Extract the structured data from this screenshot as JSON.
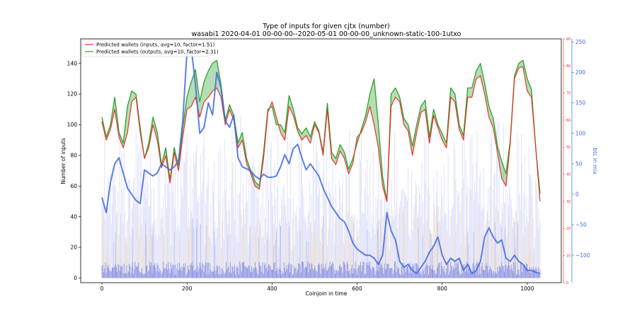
{
  "chart_data": {
    "type": "line",
    "title": "Type of inputs for given cjtx (number)",
    "subtitle": "wasabi1 2020-04-01 00-00-00--2020-05-01 00-00-00_unknown-static-100-1utxo",
    "xlabel": "Coinjoin in time",
    "ylabel": "Number of inputs",
    "y2label": "btc in mix",
    "xlim": [
      -50,
      1080
    ],
    "ylim": [
      -3,
      156
    ],
    "y2lim": [
      -145,
      255
    ],
    "y3lim": [
      0,
      90
    ],
    "xticks": [
      "0",
      "200",
      "400",
      "600",
      "800",
      "1000"
    ],
    "yticks": [
      "0",
      "20",
      "40",
      "60",
      "80",
      "100",
      "120",
      "140"
    ],
    "y2ticks": [
      "250",
      "200",
      "150",
      "100",
      "50",
      "0",
      "−50",
      "−100"
    ],
    "y3ticks": [
      "90",
      "80",
      "70",
      "60",
      "50",
      "40",
      "30",
      "20",
      "10",
      "0"
    ],
    "legend_position": "upper left",
    "legend": [
      {
        "label": "Predicted wallets (inputs, avg=10, factor=1.51)",
        "color": "#e8312a"
      },
      {
        "label": "Predicted wallets (outputs, avg=10, factor=2.31)",
        "color": "#2ca02c"
      }
    ],
    "colors": {
      "inputs": "#e8312a",
      "outputs": "#2ca02c",
      "btc": "#4169e1",
      "bars": "#c8ccf7",
      "bars_dark": "#6f7be0",
      "bars_light": "#f5d9a8"
    },
    "series": [
      {
        "name": "Predicted wallets (inputs, avg=10, factor=1.51)",
        "x": [
          0,
          10,
          20,
          30,
          40,
          50,
          60,
          70,
          80,
          90,
          100,
          110,
          120,
          130,
          140,
          150,
          160,
          170,
          180,
          190,
          200,
          210,
          220,
          230,
          240,
          250,
          260,
          270,
          280,
          290,
          300,
          310,
          320,
          330,
          340,
          350,
          360,
          370,
          380,
          390,
          400,
          410,
          420,
          430,
          440,
          450,
          460,
          470,
          480,
          490,
          500,
          510,
          520,
          530,
          540,
          550,
          560,
          570,
          580,
          590,
          600,
          610,
          620,
          630,
          640,
          650,
          660,
          670,
          680,
          690,
          700,
          710,
          720,
          730,
          740,
          750,
          760,
          770,
          780,
          790,
          800,
          810,
          820,
          830,
          840,
          850,
          860,
          870,
          880,
          890,
          900,
          910,
          920,
          930,
          940,
          950,
          960,
          970,
          980,
          990,
          1000,
          1010,
          1020,
          1030
        ],
        "values": [
          102,
          90,
          97,
          110,
          92,
          85,
          95,
          115,
          118,
          95,
          78,
          85,
          100,
          90,
          72,
          80,
          62,
          82,
          70,
          92,
          110,
          112,
          118,
          105,
          115,
          118,
          122,
          124,
          118,
          100,
          110,
          103,
          85,
          90,
          75,
          68,
          60,
          58,
          78,
          108,
          115,
          105,
          95,
          90,
          112,
          106,
          96,
          90,
          93,
          88,
          100,
          95,
          80,
          110,
          78,
          74,
          83,
          78,
          68,
          75,
          92,
          95,
          102,
          112,
          100,
          85,
          60,
          50,
          112,
          118,
          115,
          100,
          96,
          80,
          95,
          108,
          110,
          88,
          106,
          98,
          90,
          85,
          118,
          115,
          97,
          90,
          118,
          118,
          130,
          132,
          120,
          105,
          98,
          82,
          65,
          60,
          88,
          130,
          137,
          138,
          122,
          118,
          85,
          50
        ],
        "fill_with": "Predicted wallets (outputs, avg=10, factor=2.31)"
      },
      {
        "name": "Predicted wallets (outputs, avg=10, factor=2.31)",
        "x": [
          0,
          10,
          20,
          30,
          40,
          50,
          60,
          70,
          80,
          90,
          100,
          110,
          120,
          130,
          140,
          150,
          160,
          170,
          180,
          190,
          200,
          210,
          220,
          230,
          240,
          250,
          260,
          270,
          280,
          290,
          300,
          310,
          320,
          330,
          340,
          350,
          360,
          370,
          380,
          390,
          400,
          410,
          420,
          430,
          440,
          450,
          460,
          470,
          480,
          490,
          500,
          510,
          520,
          530,
          540,
          550,
          560,
          570,
          580,
          590,
          600,
          610,
          620,
          630,
          640,
          650,
          660,
          670,
          680,
          690,
          700,
          710,
          720,
          730,
          740,
          750,
          760,
          770,
          780,
          790,
          800,
          810,
          820,
          830,
          840,
          850,
          860,
          870,
          880,
          890,
          900,
          910,
          920,
          930,
          940,
          950,
          960,
          970,
          980,
          990,
          1000,
          1010,
          1020,
          1030
        ],
        "values": [
          105,
          92,
          100,
          118,
          95,
          88,
          112,
          122,
          120,
          98,
          78,
          88,
          105,
          95,
          74,
          85,
          64,
          85,
          73,
          98,
          118,
          128,
          136,
          115,
          128,
          135,
          140,
          142,
          126,
          103,
          113,
          106,
          88,
          95,
          78,
          70,
          63,
          60,
          82,
          110,
          112,
          100,
          100,
          95,
          119,
          110,
          98,
          94,
          98,
          92,
          102,
          96,
          82,
          114,
          82,
          78,
          87,
          82,
          71,
          78,
          88,
          97,
          106,
          120,
          130,
          100,
          66,
          50,
          120,
          124,
          118,
          104,
          100,
          86,
          100,
          112,
          116,
          92,
          110,
          100,
          94,
          88,
          124,
          120,
          100,
          93,
          124,
          124,
          135,
          140,
          127,
          112,
          104,
          86,
          76,
          68,
          90,
          132,
          140,
          142,
          130,
          123,
          85,
          55
        ]
      },
      {
        "name": "btc in mix",
        "axis": "y2",
        "x": [
          0,
          10,
          20,
          30,
          40,
          50,
          60,
          70,
          80,
          90,
          100,
          110,
          120,
          130,
          140,
          150,
          160,
          170,
          180,
          190,
          200,
          210,
          220,
          230,
          240,
          250,
          260,
          270,
          280,
          290,
          300,
          310,
          320,
          330,
          340,
          350,
          360,
          370,
          380,
          390,
          400,
          410,
          420,
          430,
          440,
          450,
          460,
          470,
          480,
          490,
          500,
          510,
          520,
          530,
          540,
          550,
          560,
          570,
          580,
          590,
          600,
          610,
          620,
          630,
          640,
          650,
          660,
          670,
          680,
          690,
          700,
          710,
          720,
          730,
          740,
          750,
          760,
          770,
          780,
          790,
          800,
          810,
          820,
          830,
          840,
          850,
          860,
          870,
          880,
          890,
          900,
          910,
          920,
          930,
          940,
          950,
          960,
          970,
          980,
          990,
          1000,
          1010,
          1020,
          1030
        ],
        "values": [
          -5,
          -30,
          20,
          50,
          60,
          35,
          10,
          0,
          -10,
          -15,
          40,
          35,
          30,
          35,
          50,
          45,
          40,
          45,
          55,
          120,
          235,
          240,
          180,
          100,
          110,
          150,
          130,
          200,
          175,
          120,
          110,
          130,
          60,
          45,
          42,
          38,
          30,
          25,
          33,
          28,
          28,
          30,
          45,
          65,
          50,
          75,
          82,
          60,
          40,
          50,
          40,
          30,
          10,
          -5,
          -20,
          -30,
          -40,
          -45,
          -60,
          -80,
          -90,
          -95,
          -100,
          -100,
          -105,
          -115,
          -100,
          -30,
          -60,
          -75,
          -110,
          -120,
          -115,
          -125,
          -130,
          -120,
          -110,
          -95,
          -85,
          -70,
          -100,
          -115,
          -105,
          -110,
          -105,
          -125,
          -115,
          -130,
          -125,
          -110,
          -70,
          -55,
          -70,
          -80,
          -75,
          -105,
          -110,
          -100,
          -110,
          -115,
          -125,
          -125,
          -128,
          -130
        ]
      }
    ]
  }
}
